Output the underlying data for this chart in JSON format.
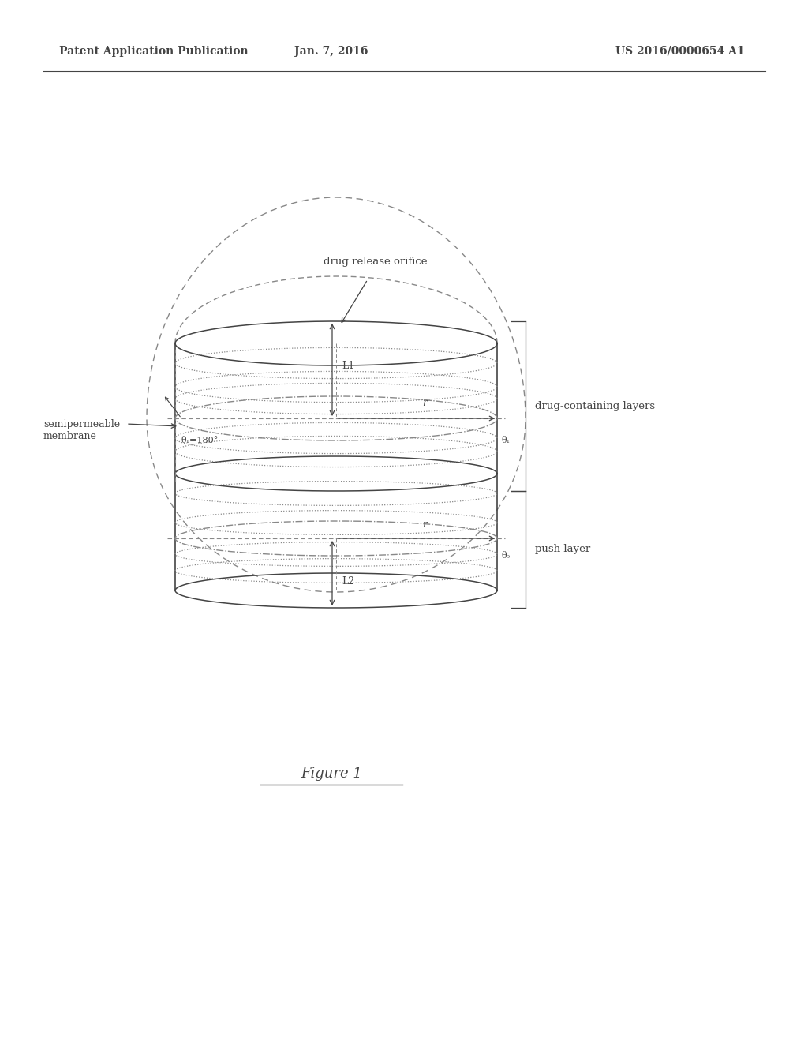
{
  "bg_color": "#ffffff",
  "line_color": "#444444",
  "dashed_color": "#888888",
  "header_left": "Patent Application Publication",
  "header_center": "Jan. 7, 2016",
  "header_right": "US 2016/0000654 A1",
  "figure_label": "Figure 1",
  "label_drug_layers": "drug-containing layers",
  "label_push_layer": "push layer",
  "label_membrane": "semipermeable\nmembrane",
  "label_orifice": "drug release orifice",
  "label_L1": "L1",
  "label_L2": "L2",
  "label_r_top": "r",
  "label_r_bot": "r",
  "label_theta1": "θ₁=180°",
  "label_theta2": "θ₁",
  "label_theta3": "θ₀"
}
